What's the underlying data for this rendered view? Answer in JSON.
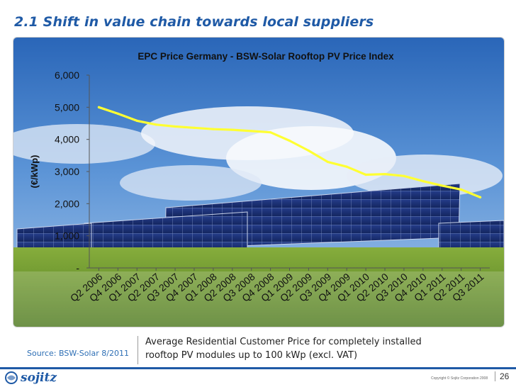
{
  "slide": {
    "title": "2.1 Shift in value chain towards local suppliers",
    "caption_line1": "Average Residential Customer Price for completely installed",
    "caption_line2": "rooftop PV modules up to 100 kWp (excl. VAT)",
    "source": "Source: BSW-Solar 8/2011",
    "logo_text": "sojitz",
    "copyright": "Copyright © Sojitz Corporation 2008",
    "page_number": "26"
  },
  "chart_data": {
    "type": "line",
    "title": "EPC Price Germany - BSW-Solar Rooftop PV Price Index",
    "ylabel": "(€/kWp)",
    "xlabel": "",
    "ylim": [
      0,
      6000
    ],
    "yticks": [
      0,
      1000,
      2000,
      3000,
      4000,
      5000,
      6000
    ],
    "ytick_labels": [
      "-",
      "1,000",
      "2,000",
      "3,000",
      "4,000",
      "5,000",
      "6,000"
    ],
    "categories": [
      "Q2 2006",
      "Q4 2006",
      "Q1 2007",
      "Q2 2007",
      "Q3 2007",
      "Q4 2007",
      "Q1 2008",
      "Q2 2008",
      "Q3 2008",
      "Q4 2008",
      "Q1 2009",
      "Q2 2009",
      "Q3 2009",
      "Q4 2009",
      "Q1 2010",
      "Q2 2010",
      "Q3 2010",
      "Q4 2010",
      "Q1 2011",
      "Q2 2011",
      "Q3 2011"
    ],
    "series": [
      {
        "values": [
          5000,
          4800,
          4580,
          4460,
          4400,
          4360,
          4320,
          4300,
          4260,
          4220,
          3960,
          3650,
          3300,
          3150,
          2900,
          2920,
          2860,
          2700,
          2560,
          2440,
          2200
        ],
        "color": "#ffff33"
      }
    ],
    "grid": false,
    "legend": "none",
    "background": "photo of solar panel field under cloudy blue sky"
  }
}
